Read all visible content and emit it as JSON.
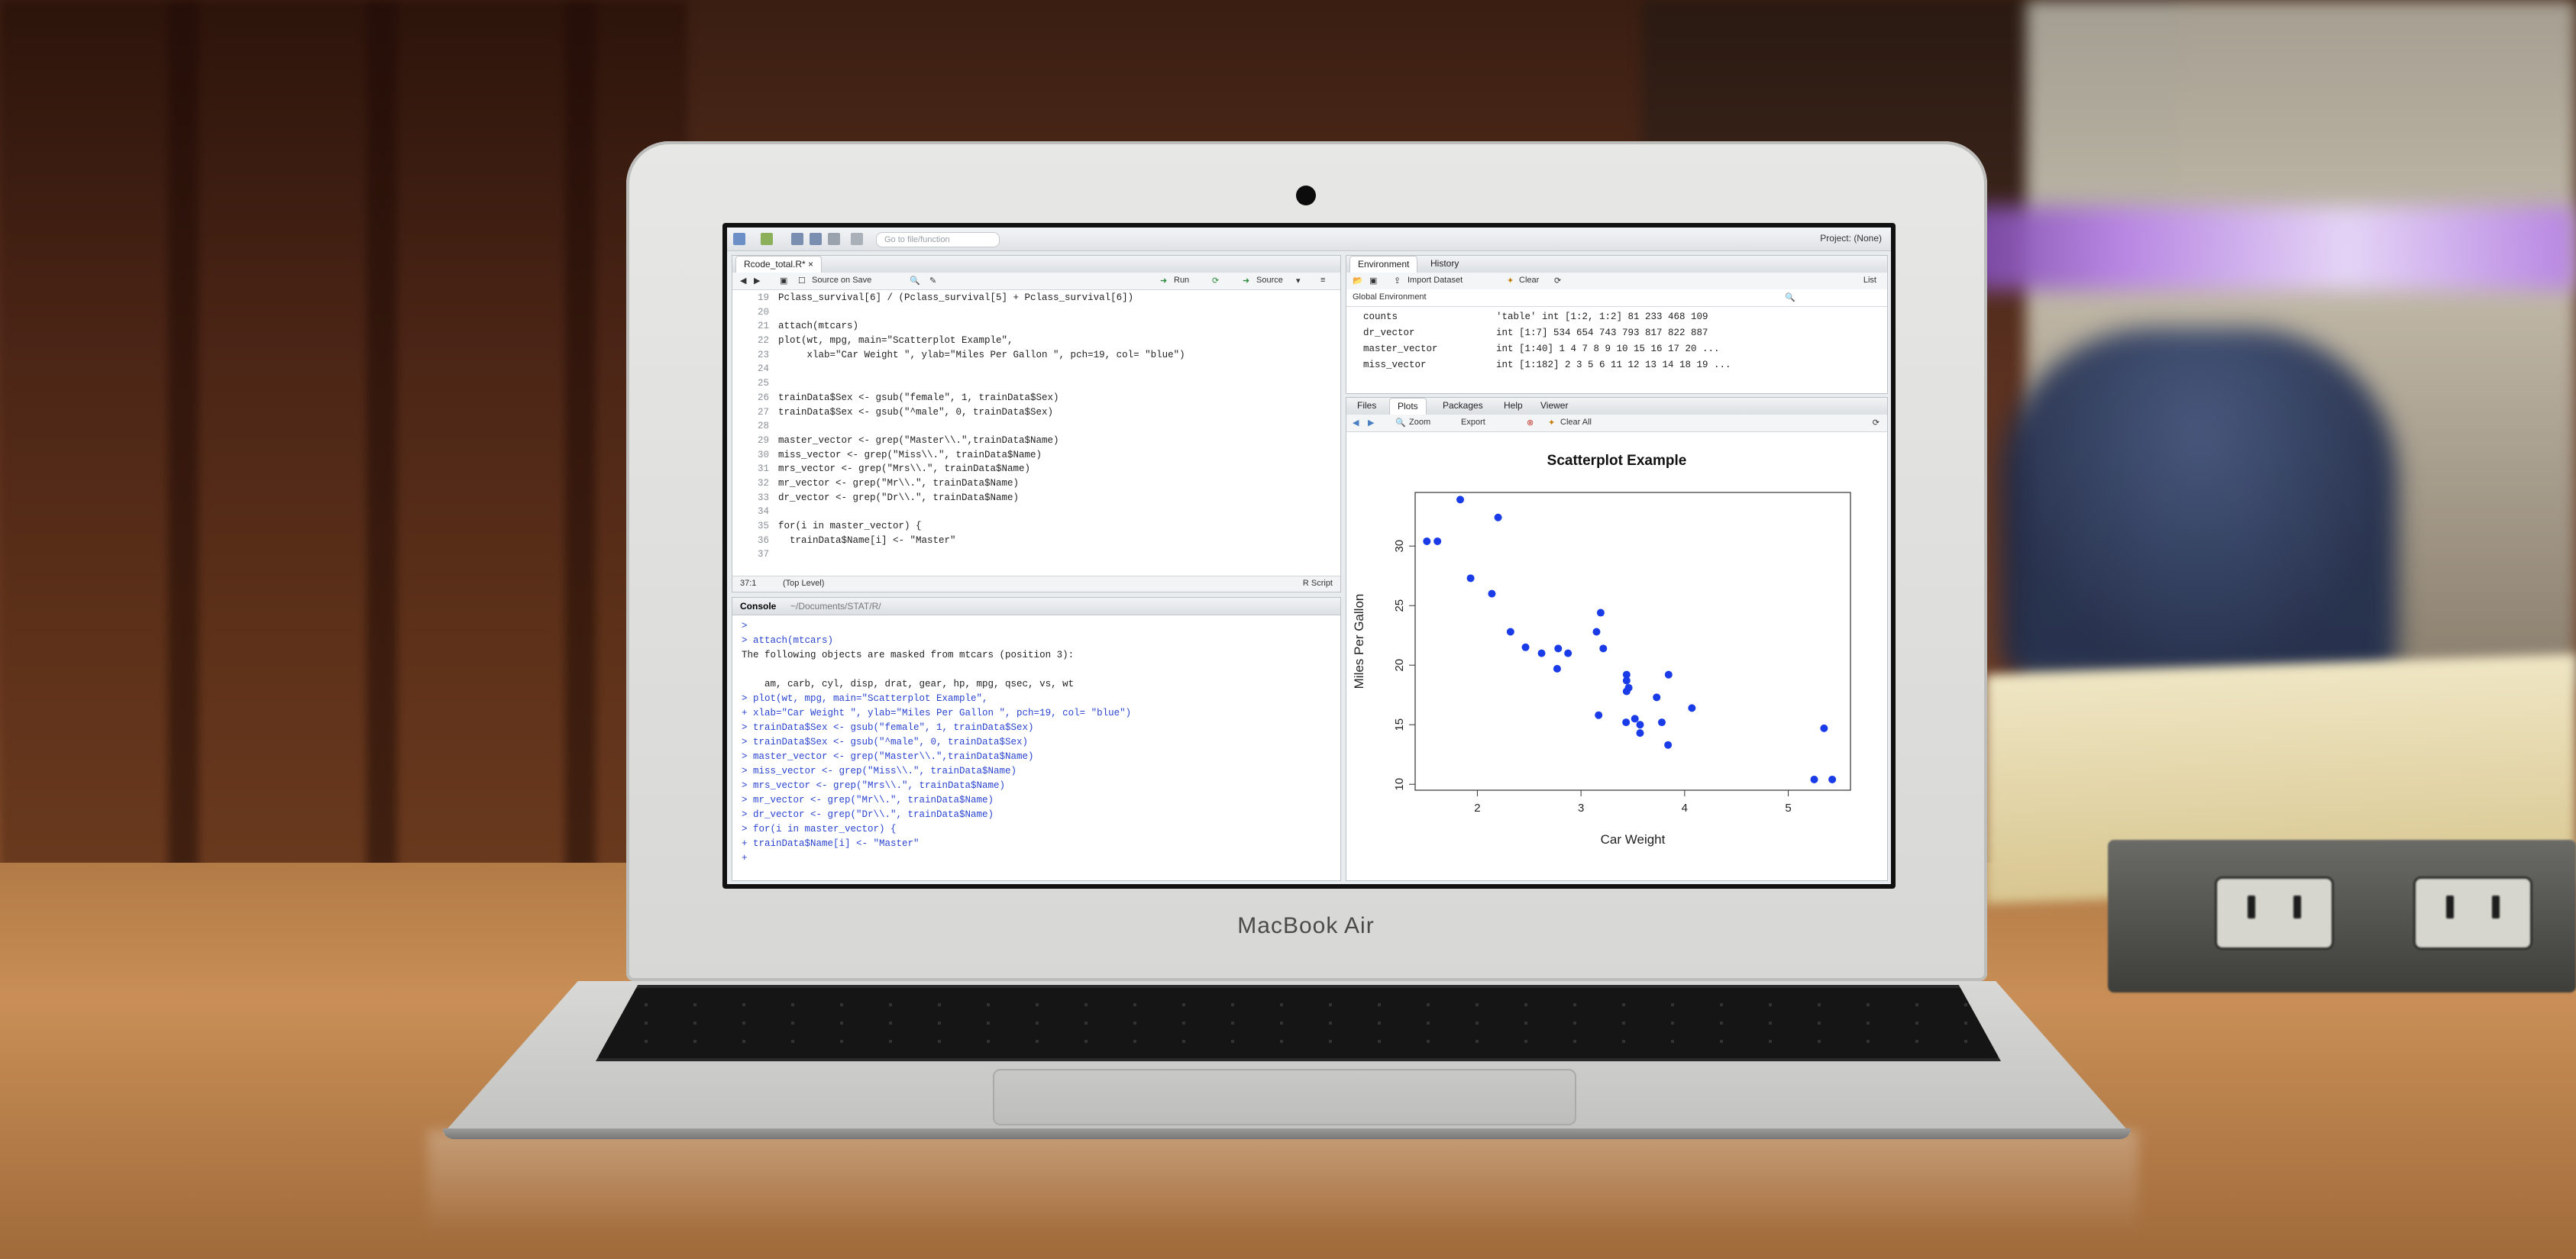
{
  "device": {
    "brand": "MacBook Air"
  },
  "toolbar": {
    "goto_placeholder": "Go to file/function",
    "project": "Project: (None)"
  },
  "editor": {
    "tab_label": "Rcode_total.R*",
    "source_on_save": "Source on Save",
    "run_label": "Run",
    "source_label": "Source",
    "lines": [
      {
        "n": "19",
        "code": "Pclass_survival[6] / (Pclass_survival[5] + Pclass_survival[6])"
      },
      {
        "n": "20",
        "code": ""
      },
      {
        "n": "21",
        "code": "attach(mtcars)"
      },
      {
        "n": "22",
        "code": "plot(wt, mpg, main=\"Scatterplot Example\","
      },
      {
        "n": "23",
        "code": "     xlab=\"Car Weight \", ylab=\"Miles Per Gallon \", pch=19, col= \"blue\")"
      },
      {
        "n": "24",
        "code": ""
      },
      {
        "n": "25",
        "code": ""
      },
      {
        "n": "26",
        "code": "trainData$Sex <- gsub(\"female\", 1, trainData$Sex)"
      },
      {
        "n": "27",
        "code": "trainData$Sex <- gsub(\"^male\", 0, trainData$Sex)"
      },
      {
        "n": "28",
        "code": ""
      },
      {
        "n": "29",
        "code": "master_vector <- grep(\"Master\\\\.\",trainData$Name)"
      },
      {
        "n": "30",
        "code": "miss_vector <- grep(\"Miss\\\\.\", trainData$Name)"
      },
      {
        "n": "31",
        "code": "mrs_vector <- grep(\"Mrs\\\\.\", trainData$Name)"
      },
      {
        "n": "32",
        "code": "mr_vector <- grep(\"Mr\\\\.\", trainData$Name)"
      },
      {
        "n": "33",
        "code": "dr_vector <- grep(\"Dr\\\\.\", trainData$Name)"
      },
      {
        "n": "34",
        "code": ""
      },
      {
        "n": "35",
        "code": "for(i in master_vector) {"
      },
      {
        "n": "36",
        "code": "  trainData$Name[i] <- \"Master\""
      },
      {
        "n": "37",
        "code": ""
      }
    ],
    "status_position": "37:1",
    "status_scope": "(Top Level)",
    "status_type": "R Script"
  },
  "console": {
    "title": "Console",
    "path": "~/Documents/STAT/R/",
    "lines": [
      {
        "kind": "cmd",
        "text": ">"
      },
      {
        "kind": "cmd",
        "text": "> attach(mtcars)"
      },
      {
        "kind": "out",
        "text": "The following objects are masked from mtcars (position 3):"
      },
      {
        "kind": "out",
        "text": ""
      },
      {
        "kind": "out",
        "text": "    am, carb, cyl, disp, drat, gear, hp, mpg, qsec, vs, wt"
      },
      {
        "kind": "cmd",
        "text": "> plot(wt, mpg, main=\"Scatterplot Example\","
      },
      {
        "kind": "cmd",
        "text": "+ xlab=\"Car Weight \", ylab=\"Miles Per Gallon \", pch=19, col= \"blue\")"
      },
      {
        "kind": "cmd",
        "text": "> trainData$Sex <- gsub(\"female\", 1, trainData$Sex)"
      },
      {
        "kind": "cmd",
        "text": "> trainData$Sex <- gsub(\"^male\", 0, trainData$Sex)"
      },
      {
        "kind": "cmd",
        "text": "> master_vector <- grep(\"Master\\\\.\",trainData$Name)"
      },
      {
        "kind": "cmd",
        "text": "> miss_vector <- grep(\"Miss\\\\.\", trainData$Name)"
      },
      {
        "kind": "cmd",
        "text": "> mrs_vector <- grep(\"Mrs\\\\.\", trainData$Name)"
      },
      {
        "kind": "cmd",
        "text": "> mr_vector <- grep(\"Mr\\\\.\", trainData$Name)"
      },
      {
        "kind": "cmd",
        "text": "> dr_vector <- grep(\"Dr\\\\.\", trainData$Name)"
      },
      {
        "kind": "cmd",
        "text": "> for(i in master_vector) {"
      },
      {
        "kind": "cmd",
        "text": "+ trainData$Name[i] <- \"Master\""
      },
      {
        "kind": "cmd",
        "text": "+"
      }
    ]
  },
  "environment": {
    "tabs": [
      "Environment",
      "History"
    ],
    "import_label": "Import Dataset",
    "clear_label": "Clear",
    "scope": "Global Environment",
    "list_label": "List",
    "rows": [
      {
        "name": "counts",
        "value": "'table' int [1:2, 1:2] 81 233 468 109"
      },
      {
        "name": "dr_vector",
        "value": "int [1:7] 534 654 743 793 817 822 887"
      },
      {
        "name": "master_vector",
        "value": "int [1:40] 1 4 7 8 9 10 15 16 17 20 ..."
      },
      {
        "name": "miss_vector",
        "value": "int [1:182] 2 3 5 6 11 12 13 14 18 19 ..."
      }
    ]
  },
  "files_pane": {
    "tabs": [
      "Files",
      "Plots",
      "Packages",
      "Help",
      "Viewer"
    ],
    "zoom_label": "Zoom",
    "export_label": "Export",
    "clear_all_label": "Clear All"
  },
  "chart_data": {
    "type": "scatter",
    "title": "Scatterplot Example",
    "xlabel": "Car Weight",
    "ylabel": "Miles Per Gallon",
    "xlim": [
      1.4,
      5.6
    ],
    "ylim": [
      9.5,
      34.5
    ],
    "xticks": [
      2,
      3,
      4,
      5
    ],
    "yticks": [
      10,
      15,
      20,
      25,
      30
    ],
    "point_color": "#1a3be8",
    "points": [
      [
        2.62,
        21.0
      ],
      [
        2.875,
        21.0
      ],
      [
        2.32,
        22.8
      ],
      [
        3.215,
        21.4
      ],
      [
        3.44,
        18.7
      ],
      [
        3.46,
        18.1
      ],
      [
        3.57,
        14.3
      ],
      [
        3.19,
        24.4
      ],
      [
        3.15,
        22.8
      ],
      [
        3.44,
        19.2
      ],
      [
        3.44,
        17.8
      ],
      [
        4.07,
        16.4
      ],
      [
        3.73,
        17.3
      ],
      [
        3.78,
        15.2
      ],
      [
        5.25,
        10.4
      ],
      [
        5.424,
        10.4
      ],
      [
        5.345,
        14.7
      ],
      [
        2.2,
        32.4
      ],
      [
        1.615,
        30.4
      ],
      [
        1.835,
        33.9
      ],
      [
        2.465,
        21.5
      ],
      [
        3.52,
        15.5
      ],
      [
        3.435,
        15.2
      ],
      [
        3.84,
        13.3
      ],
      [
        3.845,
        19.2
      ],
      [
        1.935,
        27.3
      ],
      [
        2.14,
        26.0
      ],
      [
        1.513,
        30.4
      ],
      [
        3.17,
        15.8
      ],
      [
        2.77,
        19.7
      ],
      [
        3.57,
        15.0
      ],
      [
        2.78,
        21.4
      ]
    ]
  }
}
